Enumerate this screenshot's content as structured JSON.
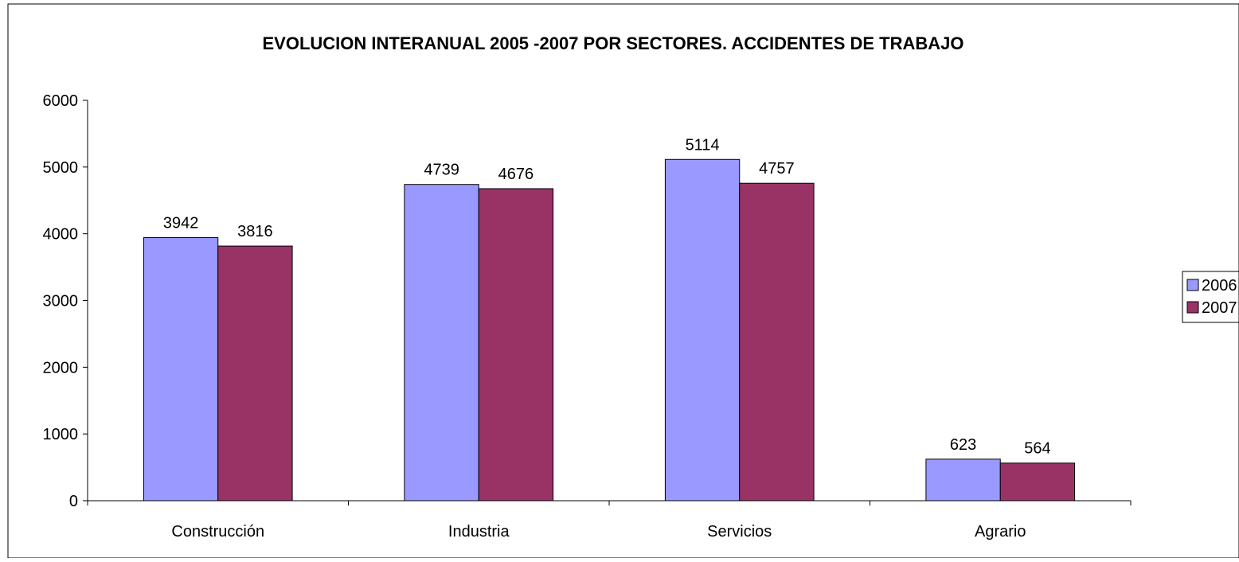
{
  "chart_data": {
    "type": "bar",
    "title": "EVOLUCION INTERANUAL 2005 -2007 POR SECTORES. ACCIDENTES DE TRABAJO",
    "xlabel": "",
    "ylabel": "",
    "categories": [
      "Construcción",
      "Industria",
      "Servicios",
      "Agrario"
    ],
    "series": [
      {
        "name": "2006",
        "values": [
          3942,
          4739,
          5114,
          623
        ],
        "color": "#9999FF"
      },
      {
        "name": "2007",
        "values": [
          3816,
          4676,
          4757,
          564
        ],
        "color": "#993366"
      }
    ],
    "ylim": [
      0,
      6000
    ],
    "yticks": [
      "0",
      "1000",
      "2000",
      "3000",
      "4000",
      "5000",
      "6000"
    ],
    "data_labels": true,
    "grid": false,
    "legend_position": "right"
  }
}
